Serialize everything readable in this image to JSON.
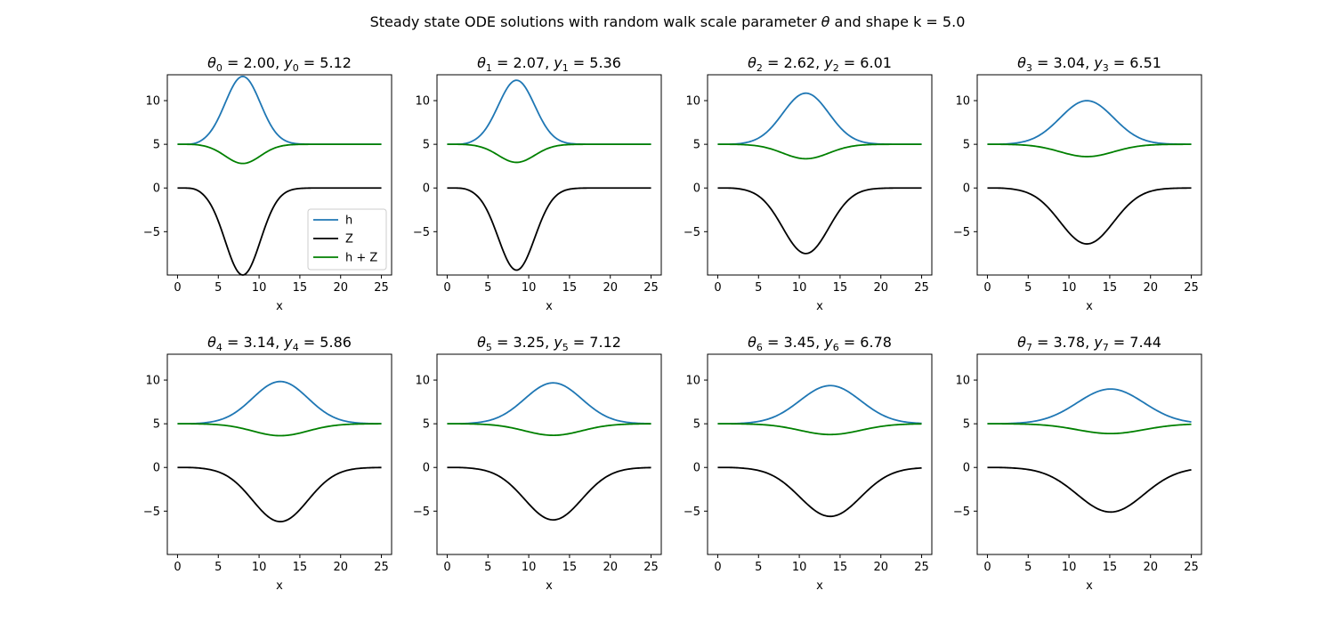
{
  "figure": {
    "suptitle_prefix": "Steady state ODE solutions with random walk scale parameter ",
    "suptitle_symbol": "θ",
    "suptitle_suffix": " and shape k = 5.0"
  },
  "colors": {
    "h": "#1f77b4",
    "Z": "#000000",
    "hZ": "#008000"
  },
  "chart_data": [
    {
      "type": "line",
      "theta_label": "θ",
      "y_label": "y",
      "index": "0",
      "theta": "2.00",
      "y": "5.12",
      "xlabel": "x",
      "xlim": [
        -1.25,
        26.25
      ],
      "ylim": [
        -9.96,
        12.96
      ],
      "xticks": [
        0,
        5,
        10,
        15,
        20,
        25
      ],
      "yticks": [
        -5,
        0,
        5,
        10
      ],
      "min_z": -9.96,
      "x_min": 8.0,
      "theta_val": 2.0,
      "legend": {
        "placement": "lower right",
        "entries": [
          "h",
          "Z",
          "h + Z"
        ]
      },
      "series": [
        {
          "name": "h"
        },
        {
          "name": "Z"
        },
        {
          "name": "h + Z"
        }
      ]
    },
    {
      "type": "line",
      "theta_label": "θ",
      "y_label": "y",
      "index": "1",
      "theta": "2.07",
      "y": "5.36",
      "xlabel": "x",
      "xlim": [
        -1.25,
        26.25
      ],
      "ylim": [
        -9.96,
        12.96
      ],
      "xticks": [
        0,
        5,
        10,
        15,
        20,
        25
      ],
      "yticks": [
        -5,
        0,
        5,
        10
      ],
      "min_z": -9.4,
      "x_min": 8.5,
      "theta_val": 2.07,
      "series": [
        {
          "name": "h"
        },
        {
          "name": "Z"
        },
        {
          "name": "h + Z"
        }
      ]
    },
    {
      "type": "line",
      "theta_label": "θ",
      "y_label": "y",
      "index": "2",
      "theta": "2.62",
      "y": "6.01",
      "xlabel": "x",
      "xlim": [
        -1.25,
        26.25
      ],
      "ylim": [
        -9.96,
        12.96
      ],
      "xticks": [
        0,
        5,
        10,
        15,
        20,
        25
      ],
      "yticks": [
        -5,
        0,
        5,
        10
      ],
      "min_z": -7.5,
      "x_min": 10.8,
      "theta_val": 2.62,
      "series": [
        {
          "name": "h"
        },
        {
          "name": "Z"
        },
        {
          "name": "h + Z"
        }
      ]
    },
    {
      "type": "line",
      "theta_label": "θ",
      "y_label": "y",
      "index": "3",
      "theta": "3.04",
      "y": "6.51",
      "xlabel": "x",
      "xlim": [
        -1.25,
        26.25
      ],
      "ylim": [
        -9.96,
        12.96
      ],
      "xticks": [
        0,
        5,
        10,
        15,
        20,
        25
      ],
      "yticks": [
        -5,
        0,
        5,
        10
      ],
      "min_z": -6.4,
      "x_min": 12.2,
      "theta_val": 3.04,
      "series": [
        {
          "name": "h"
        },
        {
          "name": "Z"
        },
        {
          "name": "h + Z"
        }
      ]
    },
    {
      "type": "line",
      "theta_label": "θ",
      "y_label": "y",
      "index": "4",
      "theta": "3.14",
      "y": "5.86",
      "xlabel": "x",
      "xlim": [
        -1.25,
        26.25
      ],
      "ylim": [
        -9.96,
        12.96
      ],
      "xticks": [
        0,
        5,
        10,
        15,
        20,
        25
      ],
      "yticks": [
        -5,
        0,
        5,
        10
      ],
      "min_z": -6.2,
      "x_min": 12.6,
      "theta_val": 3.14,
      "series": [
        {
          "name": "h"
        },
        {
          "name": "Z"
        },
        {
          "name": "h + Z"
        }
      ]
    },
    {
      "type": "line",
      "theta_label": "θ",
      "y_label": "y",
      "index": "5",
      "theta": "3.25",
      "y": "7.12",
      "xlabel": "x",
      "xlim": [
        -1.25,
        26.25
      ],
      "ylim": [
        -9.96,
        12.96
      ],
      "xticks": [
        0,
        5,
        10,
        15,
        20,
        25
      ],
      "yticks": [
        -5,
        0,
        5,
        10
      ],
      "min_z": -6.0,
      "x_min": 13.0,
      "theta_val": 3.25,
      "series": [
        {
          "name": "h"
        },
        {
          "name": "Z"
        },
        {
          "name": "h + Z"
        }
      ]
    },
    {
      "type": "line",
      "theta_label": "θ",
      "y_label": "y",
      "index": "6",
      "theta": "3.45",
      "y": "6.78",
      "xlabel": "x",
      "xlim": [
        -1.25,
        26.25
      ],
      "ylim": [
        -9.96,
        12.96
      ],
      "xticks": [
        0,
        5,
        10,
        15,
        20,
        25
      ],
      "yticks": [
        -5,
        0,
        5,
        10
      ],
      "min_z": -5.6,
      "x_min": 13.8,
      "theta_val": 3.45,
      "series": [
        {
          "name": "h"
        },
        {
          "name": "Z"
        },
        {
          "name": "h + Z"
        }
      ]
    },
    {
      "type": "line",
      "theta_label": "θ",
      "y_label": "y",
      "index": "7",
      "theta": "3.78",
      "y": "7.44",
      "xlabel": "x",
      "xlim": [
        -1.25,
        26.25
      ],
      "ylim": [
        -9.96,
        12.96
      ],
      "xticks": [
        0,
        5,
        10,
        15,
        20,
        25
      ],
      "yticks": [
        -5,
        0,
        5,
        10
      ],
      "min_z": -5.1,
      "x_min": 15.1,
      "theta_val": 3.78,
      "series": [
        {
          "name": "h"
        },
        {
          "name": "Z"
        },
        {
          "name": "h + Z"
        }
      ]
    }
  ]
}
